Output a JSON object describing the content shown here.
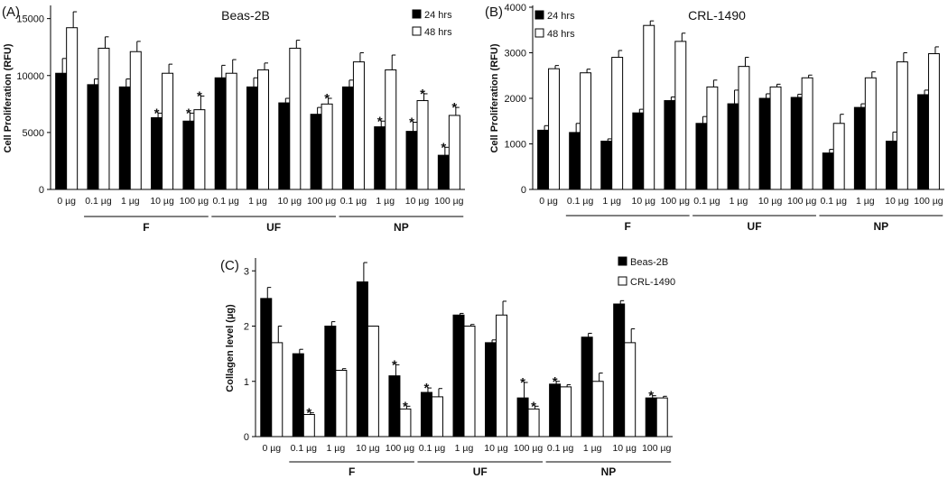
{
  "chart_data": [
    {
      "panel": "(A)",
      "type": "bar",
      "title": "Beas-2B",
      "ylabel": "Cell Proliferation (RFU)",
      "xlabel": "",
      "ylim": [
        0,
        16000
      ],
      "yticks": [
        "0",
        "5000",
        "10000",
        "15000"
      ],
      "ytick_values": [
        0,
        5000,
        10000,
        15000
      ],
      "grid": false,
      "legend": "top-right",
      "categories": [
        "0 µg",
        "0.1 µg",
        "1 µg",
        "10 µg",
        "100 µg",
        "0.1 µg",
        "1 µg",
        "10 µg",
        "100 µg",
        "0.1 µg",
        "1 µg",
        "10 µg",
        "100 µg"
      ],
      "groups": [
        {
          "label": "F",
          "from": 1,
          "to": 4
        },
        {
          "label": "UF",
          "from": 5,
          "to": 8
        },
        {
          "label": "NP",
          "from": 9,
          "to": 12
        }
      ],
      "series": [
        {
          "name": "24 hrs",
          "color": "#000000",
          "values": [
            10200,
            9200,
            9000,
            6300,
            6000,
            9800,
            9000,
            7600,
            6600,
            9000,
            5500,
            5100,
            3000
          ],
          "errors": [
            1300,
            500,
            700,
            400,
            700,
            1100,
            800,
            400,
            600,
            600,
            500,
            800,
            700
          ],
          "significant": [
            false,
            false,
            false,
            true,
            true,
            false,
            false,
            false,
            false,
            false,
            true,
            true,
            true
          ]
        },
        {
          "name": "48 hrs",
          "color": "#ffffff",
          "values": [
            14200,
            12400,
            12100,
            10200,
            7000,
            10200,
            10500,
            12400,
            7500,
            11200,
            10500,
            7800,
            6500
          ],
          "errors": [
            1400,
            1000,
            900,
            800,
            1200,
            1200,
            600,
            700,
            500,
            800,
            1300,
            600,
            700
          ],
          "significant": [
            false,
            false,
            false,
            false,
            true,
            false,
            false,
            false,
            true,
            false,
            false,
            true,
            true
          ]
        }
      ]
    },
    {
      "panel": "(B)",
      "type": "bar",
      "title": "CRL-1490",
      "ylabel": "Cell Proliferation (RFU)",
      "xlabel": "",
      "ylim": [
        0,
        4000
      ],
      "yticks": [
        "0",
        "1000",
        "2000",
        "3000",
        "4000"
      ],
      "ytick_values": [
        0,
        1000,
        2000,
        3000,
        4000
      ],
      "grid": false,
      "legend": "top-left",
      "categories": [
        "0 µg",
        "0.1 µg",
        "1 µg",
        "10 µg",
        "100 µg",
        "0.1 µg",
        "1 µg",
        "10 µg",
        "100 µg",
        "0.1 µg",
        "1 µg",
        "10 µg",
        "100 µg"
      ],
      "groups": [
        {
          "label": "F",
          "from": 1,
          "to": 4
        },
        {
          "label": "UF",
          "from": 5,
          "to": 8
        },
        {
          "label": "NP",
          "from": 9,
          "to": 12
        }
      ],
      "series": [
        {
          "name": "24 hrs",
          "color": "#000000",
          "values": [
            1300,
            1250,
            1060,
            1680,
            1950,
            1450,
            1880,
            2000,
            2020,
            800,
            1800,
            1060,
            2080
          ],
          "errors": [
            100,
            200,
            50,
            80,
            80,
            150,
            300,
            100,
            70,
            80,
            80,
            200,
            100
          ],
          "significant": [
            false,
            false,
            false,
            false,
            false,
            false,
            false,
            false,
            false,
            false,
            false,
            false,
            false
          ]
        },
        {
          "name": "48 hrs",
          "color": "#ffffff",
          "values": [
            2650,
            2560,
            2900,
            3600,
            3250,
            2250,
            2700,
            2250,
            2450,
            1450,
            2450,
            2800,
            2980
          ],
          "errors": [
            70,
            80,
            150,
            100,
            180,
            150,
            200,
            60,
            60,
            200,
            130,
            200,
            150
          ],
          "significant": [
            false,
            false,
            false,
            false,
            false,
            false,
            false,
            false,
            false,
            false,
            false,
            false,
            false
          ]
        }
      ]
    },
    {
      "panel": "(C)",
      "type": "bar",
      "title": "",
      "ylabel": "Collagen level (µg)",
      "xlabel": "",
      "ylim": [
        0,
        3.2
      ],
      "yticks": [
        "0",
        "1",
        "2",
        "3"
      ],
      "ytick_values": [
        0,
        1,
        2,
        3
      ],
      "grid": false,
      "legend": "top-right",
      "categories": [
        "0 µg",
        "0.1 µg",
        "1 µg",
        "10 µg",
        "100 µg",
        "0.1 µg",
        "1 µg",
        "10 µg",
        "100 µg",
        "0.1 µg",
        "1 µg",
        "10 µg",
        "100 µg"
      ],
      "groups": [
        {
          "label": "F",
          "from": 1,
          "to": 4
        },
        {
          "label": "UF",
          "from": 5,
          "to": 8
        },
        {
          "label": "NP",
          "from": 9,
          "to": 12
        }
      ],
      "series": [
        {
          "name": "Beas-2B",
          "color": "#000000",
          "values": [
            2.5,
            1.5,
            2.0,
            2.8,
            1.1,
            0.8,
            2.2,
            1.7,
            0.7,
            0.95,
            1.8,
            2.4,
            0.7
          ],
          "errors": [
            0.2,
            0.08,
            0.08,
            0.35,
            0.2,
            0.08,
            0.03,
            0.05,
            0.28,
            0.05,
            0.07,
            0.06,
            0.04
          ],
          "significant": [
            false,
            false,
            false,
            false,
            true,
            true,
            false,
            false,
            true,
            true,
            false,
            false,
            true
          ]
        },
        {
          "name": "CRL-1490",
          "color": "#ffffff",
          "values": [
            1.7,
            0.4,
            1.2,
            2.0,
            0.5,
            0.72,
            2.0,
            2.2,
            0.5,
            0.9,
            1.0,
            1.7,
            0.7
          ],
          "errors": [
            0.3,
            0.03,
            0.03,
            0.0,
            0.05,
            0.15,
            0.03,
            0.25,
            0.05,
            0.04,
            0.15,
            0.25,
            0.03
          ],
          "significant": [
            false,
            true,
            false,
            false,
            true,
            false,
            false,
            false,
            true,
            false,
            false,
            false,
            false
          ]
        }
      ]
    }
  ]
}
